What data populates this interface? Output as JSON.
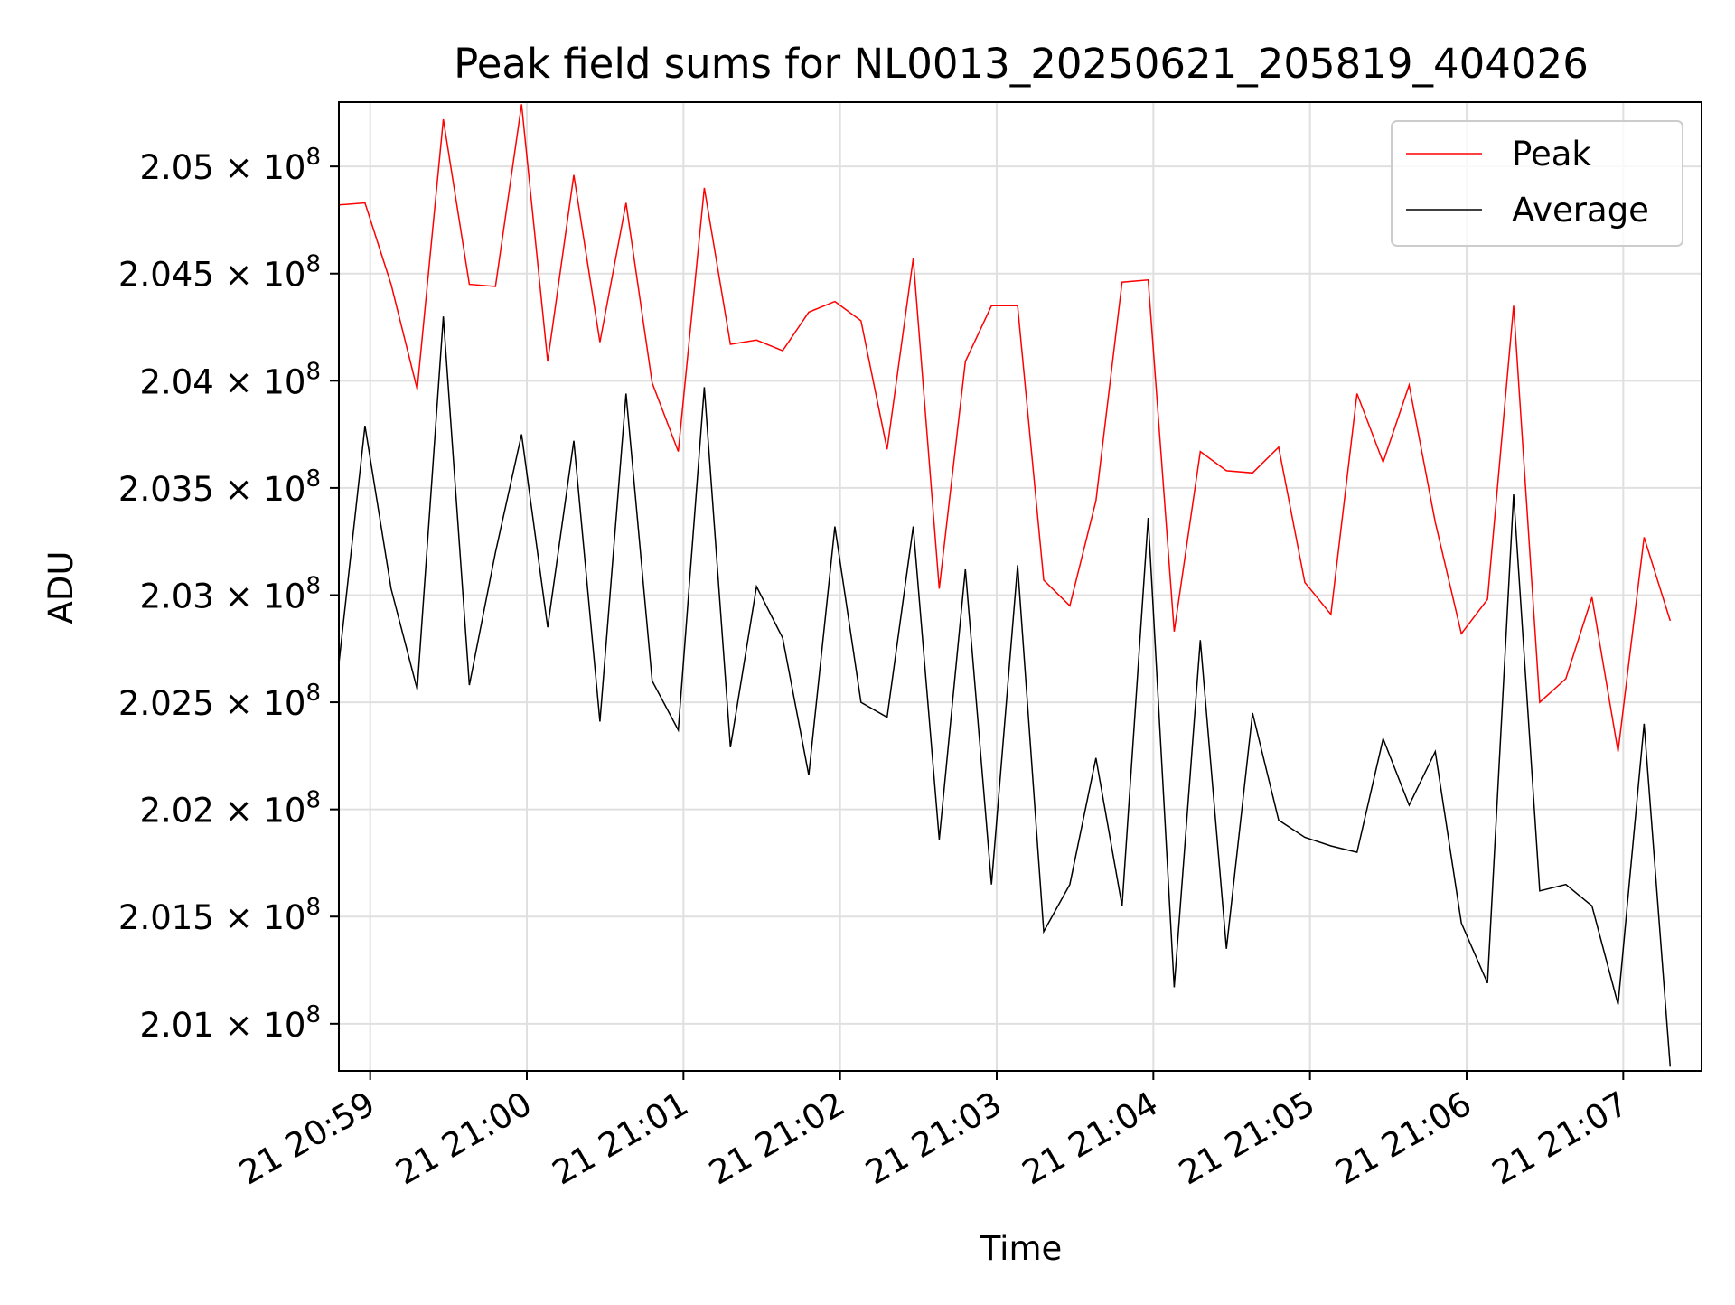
{
  "chart_data": {
    "type": "line",
    "title": "Peak field sums for NL0013_20250621_205819_404026",
    "xlabel": "Time",
    "ylabel": "ADU",
    "x_start": "2025-06-21 20:58:48",
    "x_interval_seconds": 10,
    "xlim": [
      "2025-06-21 20:58:48",
      "2025-06-21 21:07:30"
    ],
    "ylim": [
      200780000,
      205300000
    ],
    "xticks": [
      {
        "time": "2025-06-21 20:59:00",
        "label": "21 20:59"
      },
      {
        "time": "2025-06-21 21:00:00",
        "label": "21 21:00"
      },
      {
        "time": "2025-06-21 21:01:00",
        "label": "21 21:01"
      },
      {
        "time": "2025-06-21 21:02:00",
        "label": "21 21:02"
      },
      {
        "time": "2025-06-21 21:03:00",
        "label": "21 21:03"
      },
      {
        "time": "2025-06-21 21:04:00",
        "label": "21 21:04"
      },
      {
        "time": "2025-06-21 21:05:00",
        "label": "21 21:05"
      },
      {
        "time": "2025-06-21 21:06:00",
        "label": "21 21:06"
      },
      {
        "time": "2025-06-21 21:07:00",
        "label": "21 21:07"
      }
    ],
    "yticks": [
      {
        "value": 201000000,
        "mantissa": "2.01"
      },
      {
        "value": 201500000,
        "mantissa": "2.015"
      },
      {
        "value": 202000000,
        "mantissa": "2.02"
      },
      {
        "value": 202500000,
        "mantissa": "2.025"
      },
      {
        "value": 203000000,
        "mantissa": "2.03"
      },
      {
        "value": 203500000,
        "mantissa": "2.035"
      },
      {
        "value": 204000000,
        "mantissa": "2.04"
      },
      {
        "value": 204500000,
        "mantissa": "2.045"
      },
      {
        "value": 205000000,
        "mantissa": "2.05"
      }
    ],
    "ytick_suffix": "× 10",
    "ytick_exponent": "8",
    "grid": true,
    "legend_position": "top-right",
    "series": [
      {
        "name": "Peak",
        "color": "#ff0000",
        "values": [
          204820000,
          204830000,
          204450000,
          203960000,
          205220000,
          204450000,
          204440000,
          205290000,
          204090000,
          204960000,
          204180000,
          204830000,
          203990000,
          203670000,
          204900000,
          204170000,
          204190000,
          204140000,
          204320000,
          204370000,
          204280000,
          203680000,
          204570000,
          203030000,
          204090000,
          204350000,
          204350000,
          203070000,
          202950000,
          203440000,
          204460000,
          204470000,
          202830000,
          203670000,
          203580000,
          203570000,
          203690000,
          203060000,
          202910000,
          203940000,
          203620000,
          203980000,
          203340000,
          202820000,
          202980000,
          204350000,
          202500000,
          202610000,
          202990000,
          202270000,
          203270000,
          202880000
        ]
      },
      {
        "name": "Average",
        "color": "#000000",
        "values": [
          202680000,
          203790000,
          203030000,
          202560000,
          204300000,
          202580000,
          203200000,
          203750000,
          202850000,
          203720000,
          202410000,
          203940000,
          202600000,
          202370000,
          203970000,
          202290000,
          203040000,
          202800000,
          202160000,
          203320000,
          202500000,
          202430000,
          203320000,
          201860000,
          203120000,
          201650000,
          203140000,
          201430000,
          201650000,
          202240000,
          201550000,
          203360000,
          201170000,
          202790000,
          201350000,
          202450000,
          201950000,
          201870000,
          201830000,
          201800000,
          202330000,
          202020000,
          202270000,
          201470000,
          201190000,
          203470000,
          201620000,
          201650000,
          201550000,
          201090000,
          202400000,
          200800000
        ]
      }
    ]
  }
}
